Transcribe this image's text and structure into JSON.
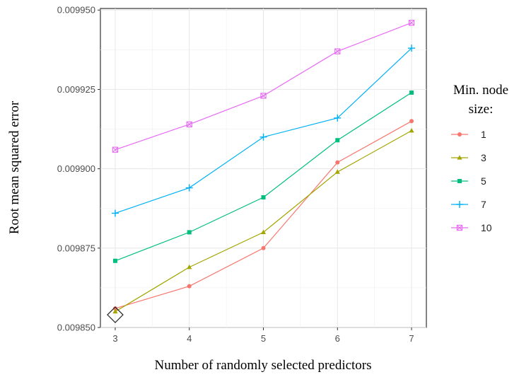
{
  "chart_data": {
    "type": "line",
    "xlabel": "Number of randomly selected predictors",
    "ylabel": "Root mean squared error",
    "x": [
      3,
      4,
      5,
      6,
      7
    ],
    "xlim": [
      2.8,
      7.2
    ],
    "ylim": [
      0.00985,
      0.0099505
    ],
    "x_ticks": [
      "3",
      "4",
      "5",
      "6",
      "7"
    ],
    "y_ticks": [
      0.00985,
      0.009875,
      0.0099,
      0.009925,
      0.00995
    ],
    "y_tick_labels": [
      "0.009850",
      "0.009875",
      "0.009900",
      "0.009925",
      "0.009950"
    ],
    "grid": true,
    "legend": {
      "title_lines": [
        "Min. node",
        "size:"
      ],
      "position": "right"
    },
    "series": [
      {
        "name": "1",
        "color": "#f8766d",
        "marker": "circle",
        "values": [
          0.009856,
          0.009863,
          0.009875,
          0.009902,
          0.009915
        ]
      },
      {
        "name": "3",
        "color": "#a3a500",
        "marker": "triangle",
        "values": [
          0.009855,
          0.009869,
          0.00988,
          0.009899,
          0.009912
        ]
      },
      {
        "name": "5",
        "color": "#00bf7d",
        "marker": "square",
        "values": [
          0.009871,
          0.00988,
          0.009891,
          0.009909,
          0.009924
        ]
      },
      {
        "name": "7",
        "color": "#00b0f6",
        "marker": "plus",
        "values": [
          0.009886,
          0.009894,
          0.00991,
          0.009916,
          0.009938
        ]
      },
      {
        "name": "10",
        "color": "#e76bf3",
        "marker": "square-cross",
        "values": [
          0.009906,
          0.009914,
          0.009923,
          0.009937,
          0.009946
        ]
      }
    ],
    "highlight": {
      "x": 3,
      "y": 0.009854,
      "marker": "diamond"
    }
  }
}
